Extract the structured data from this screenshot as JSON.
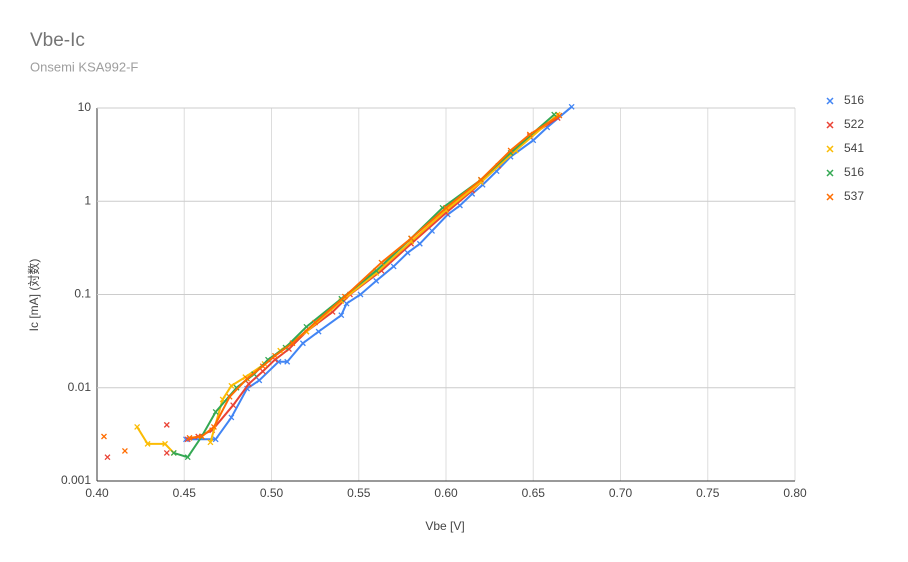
{
  "chart_data": {
    "type": "line",
    "title": "Vbe-Ic",
    "subtitle": "Onsemi KSA992-F",
    "x_label": "Vbe [V]",
    "y_label": "Ic [mA] (対数)",
    "xlim": [
      0.4,
      0.8
    ],
    "xticks": [
      {
        "value": 0.4,
        "label": "0.40"
      },
      {
        "value": 0.45,
        "label": "0.45"
      },
      {
        "value": 0.5,
        "label": "0.50"
      },
      {
        "value": 0.55,
        "label": "0.55"
      },
      {
        "value": 0.6,
        "label": "0.60"
      },
      {
        "value": 0.65,
        "label": "0.65"
      },
      {
        "value": 0.7,
        "label": "0.70"
      },
      {
        "value": 0.75,
        "label": "0.75"
      },
      {
        "value": 0.8,
        "label": "0.80"
      }
    ],
    "ylim": [
      0.001,
      10
    ],
    "yticks": [
      0.001,
      0.01,
      0.1,
      1,
      10
    ],
    "log_y": true,
    "grid": true,
    "legend": "right",
    "series": [
      {
        "name": "516",
        "color": "#4285f4",
        "x": [
          0.451,
          0.468,
          0.477,
          0.486,
          0.493,
          0.504,
          0.509,
          0.518,
          0.527,
          0.54,
          0.543,
          0.551,
          0.56,
          0.57,
          0.578,
          0.585,
          0.592,
          0.601,
          0.608,
          0.615,
          0.621,
          0.629,
          0.637,
          0.65,
          0.658,
          0.672
        ],
        "values": [
          0.0028,
          0.0028,
          0.0048,
          0.0098,
          0.012,
          0.019,
          0.019,
          0.03,
          0.04,
          0.06,
          0.08,
          0.1,
          0.14,
          0.2,
          0.28,
          0.35,
          0.48,
          0.72,
          0.9,
          1.2,
          1.5,
          2.1,
          3.0,
          4.5,
          6.2,
          10.3
        ]
      },
      {
        "name": "522",
        "color": "#ea4335",
        "x": [
          0.406,
          null,
          0.44,
          null,
          0.44,
          null,
          0.452,
          0.458,
          0.466,
          0.478,
          0.487,
          0.495,
          0.502,
          0.51,
          0.52,
          0.535,
          0.545,
          0.563,
          0.58,
          0.6,
          0.615,
          0.63,
          0.648,
          0.664
        ],
        "values": [
          0.0018,
          null,
          0.002,
          null,
          0.004,
          null,
          0.0028,
          0.003,
          0.0035,
          0.0065,
          0.011,
          0.015,
          0.02,
          0.026,
          0.04,
          0.065,
          0.1,
          0.18,
          0.35,
          0.75,
          1.3,
          2.4,
          5.0,
          7.8
        ]
      },
      {
        "name": "541",
        "color": "#fbbc04",
        "x": [
          0.423,
          0.429,
          0.439,
          0.444,
          null,
          0.465,
          0.472,
          0.477,
          0.485,
          0.496,
          0.505,
          0.52,
          0.54,
          0.56,
          0.58,
          0.6,
          0.62,
          0.64,
          0.664
        ],
        "values": [
          0.0038,
          0.0025,
          0.0025,
          0.002,
          null,
          0.0026,
          0.0075,
          0.0105,
          0.013,
          0.018,
          0.025,
          0.04,
          0.085,
          0.17,
          0.37,
          0.8,
          1.6,
          3.5,
          8.5
        ]
      },
      {
        "name": "516",
        "color": "#34a853",
        "x": [
          0.444,
          0.452,
          0.46,
          0.468,
          0.48,
          0.49,
          0.498,
          0.508,
          0.52,
          0.54,
          0.56,
          0.58,
          0.598,
          0.62,
          0.637,
          0.662
        ],
        "values": [
          0.002,
          0.0018,
          0.003,
          0.0055,
          0.01,
          0.014,
          0.02,
          0.027,
          0.045,
          0.09,
          0.18,
          0.4,
          0.85,
          1.7,
          3.3,
          8.5
        ]
      },
      {
        "name": "537",
        "color": "#ff6d01",
        "x": [
          0.404,
          null,
          0.416,
          null,
          0.453,
          0.46,
          0.467,
          0.476,
          0.486,
          0.495,
          0.502,
          0.512,
          0.525,
          0.542,
          0.563,
          0.58,
          0.6,
          0.62,
          0.637,
          0.648,
          0.665
        ],
        "values": [
          0.003,
          null,
          0.0021,
          null,
          0.0029,
          0.003,
          0.0038,
          0.008,
          0.0125,
          0.017,
          0.022,
          0.03,
          0.05,
          0.095,
          0.22,
          0.4,
          0.85,
          1.7,
          3.5,
          5.2,
          8.3
        ]
      }
    ]
  }
}
